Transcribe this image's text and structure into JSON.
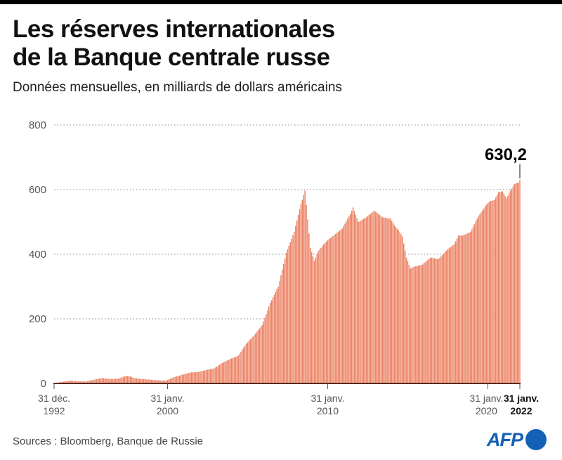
{
  "header": {
    "title_line1": "Les réserves internationales",
    "title_line2": "de la Banque centrale russe",
    "subtitle": "Données mensuelles, en milliards de dollars américains"
  },
  "footer": {
    "source": "Sources : Bloomberg, Banque de Russie",
    "logo_text": "AFP"
  },
  "colors": {
    "bar": "#ec8466",
    "bar_edge": "#ffffff",
    "axis": "#5a2a1f",
    "grid": "#888888",
    "logo": "#1360b6"
  },
  "chart_data": {
    "type": "bar",
    "title": "Les réserves internationales de la Banque centrale russe",
    "subtitle": "Données mensuelles, en milliards de dollars américains",
    "xlabel": "",
    "ylabel": "milliards de dollars américains",
    "ylim": [
      0,
      800
    ],
    "yticks": [
      "0",
      "200",
      "400",
      "600",
      "800"
    ],
    "grid": true,
    "start_month": "1992-12",
    "end_month": "2022-01",
    "x_ticks": [
      {
        "month": "1992-12",
        "line1": "31 déc.",
        "line2": "1992",
        "bold": false
      },
      {
        "month": "2000-01",
        "line1": "31 janv.",
        "line2": "2000",
        "bold": false
      },
      {
        "month": "2010-01",
        "line1": "31 janv.",
        "line2": "2010",
        "bold": false
      },
      {
        "month": "2020-01",
        "line1": "31 janv.",
        "line2": "2020",
        "bold": false
      },
      {
        "month": "2022-01",
        "line1": "31 janv.",
        "line2": "2022",
        "bold": true
      }
    ],
    "annotation": {
      "month": "2022-01",
      "value": 630.2,
      "label": "630,2"
    },
    "anchors": [
      [
        "1992-12",
        1
      ],
      [
        "1993-06",
        5
      ],
      [
        "1993-12",
        9
      ],
      [
        "1994-06",
        7
      ],
      [
        "1994-12",
        6
      ],
      [
        "1995-06",
        12
      ],
      [
        "1995-12",
        17
      ],
      [
        "1996-06",
        14
      ],
      [
        "1996-12",
        15
      ],
      [
        "1997-06",
        24
      ],
      [
        "1997-09",
        22
      ],
      [
        "1997-12",
        17
      ],
      [
        "1998-06",
        14
      ],
      [
        "1998-12",
        12
      ],
      [
        "1999-06",
        10
      ],
      [
        "1999-12",
        9
      ],
      [
        "2000-06",
        20
      ],
      [
        "2000-12",
        27
      ],
      [
        "2001-06",
        34
      ],
      [
        "2001-12",
        36
      ],
      [
        "2002-06",
        42
      ],
      [
        "2002-12",
        47
      ],
      [
        "2003-06",
        64
      ],
      [
        "2003-12",
        76
      ],
      [
        "2004-06",
        86
      ],
      [
        "2004-12",
        123
      ],
      [
        "2005-06",
        150
      ],
      [
        "2005-12",
        181
      ],
      [
        "2006-06",
        250
      ],
      [
        "2006-12",
        300
      ],
      [
        "2007-06",
        405
      ],
      [
        "2007-12",
        470
      ],
      [
        "2008-04",
        540
      ],
      [
        "2008-08",
        597
      ],
      [
        "2008-12",
        420
      ],
      [
        "2009-03",
        380
      ],
      [
        "2009-06",
        410
      ],
      [
        "2009-12",
        440
      ],
      [
        "2010-06",
        460
      ],
      [
        "2010-12",
        480
      ],
      [
        "2011-06",
        525
      ],
      [
        "2011-08",
        545
      ],
      [
        "2011-12",
        500
      ],
      [
        "2012-06",
        515
      ],
      [
        "2012-12",
        535
      ],
      [
        "2013-06",
        515
      ],
      [
        "2013-12",
        510
      ],
      [
        "2014-03",
        490
      ],
      [
        "2014-06",
        475
      ],
      [
        "2014-09",
        455
      ],
      [
        "2014-12",
        390
      ],
      [
        "2015-03",
        356
      ],
      [
        "2015-06",
        362
      ],
      [
        "2015-12",
        368
      ],
      [
        "2016-06",
        390
      ],
      [
        "2016-12",
        385
      ],
      [
        "2017-06",
        412
      ],
      [
        "2017-12",
        432
      ],
      [
        "2018-03",
        458
      ],
      [
        "2018-06",
        458
      ],
      [
        "2018-12",
        469
      ],
      [
        "2019-06",
        518
      ],
      [
        "2019-12",
        554
      ],
      [
        "2020-03",
        565
      ],
      [
        "2020-06",
        568
      ],
      [
        "2020-09",
        592
      ],
      [
        "2020-12",
        595
      ],
      [
        "2021-03",
        573
      ],
      [
        "2021-06",
        597
      ],
      [
        "2021-09",
        618
      ],
      [
        "2021-12",
        622
      ],
      [
        "2022-01",
        630.2
      ]
    ]
  }
}
